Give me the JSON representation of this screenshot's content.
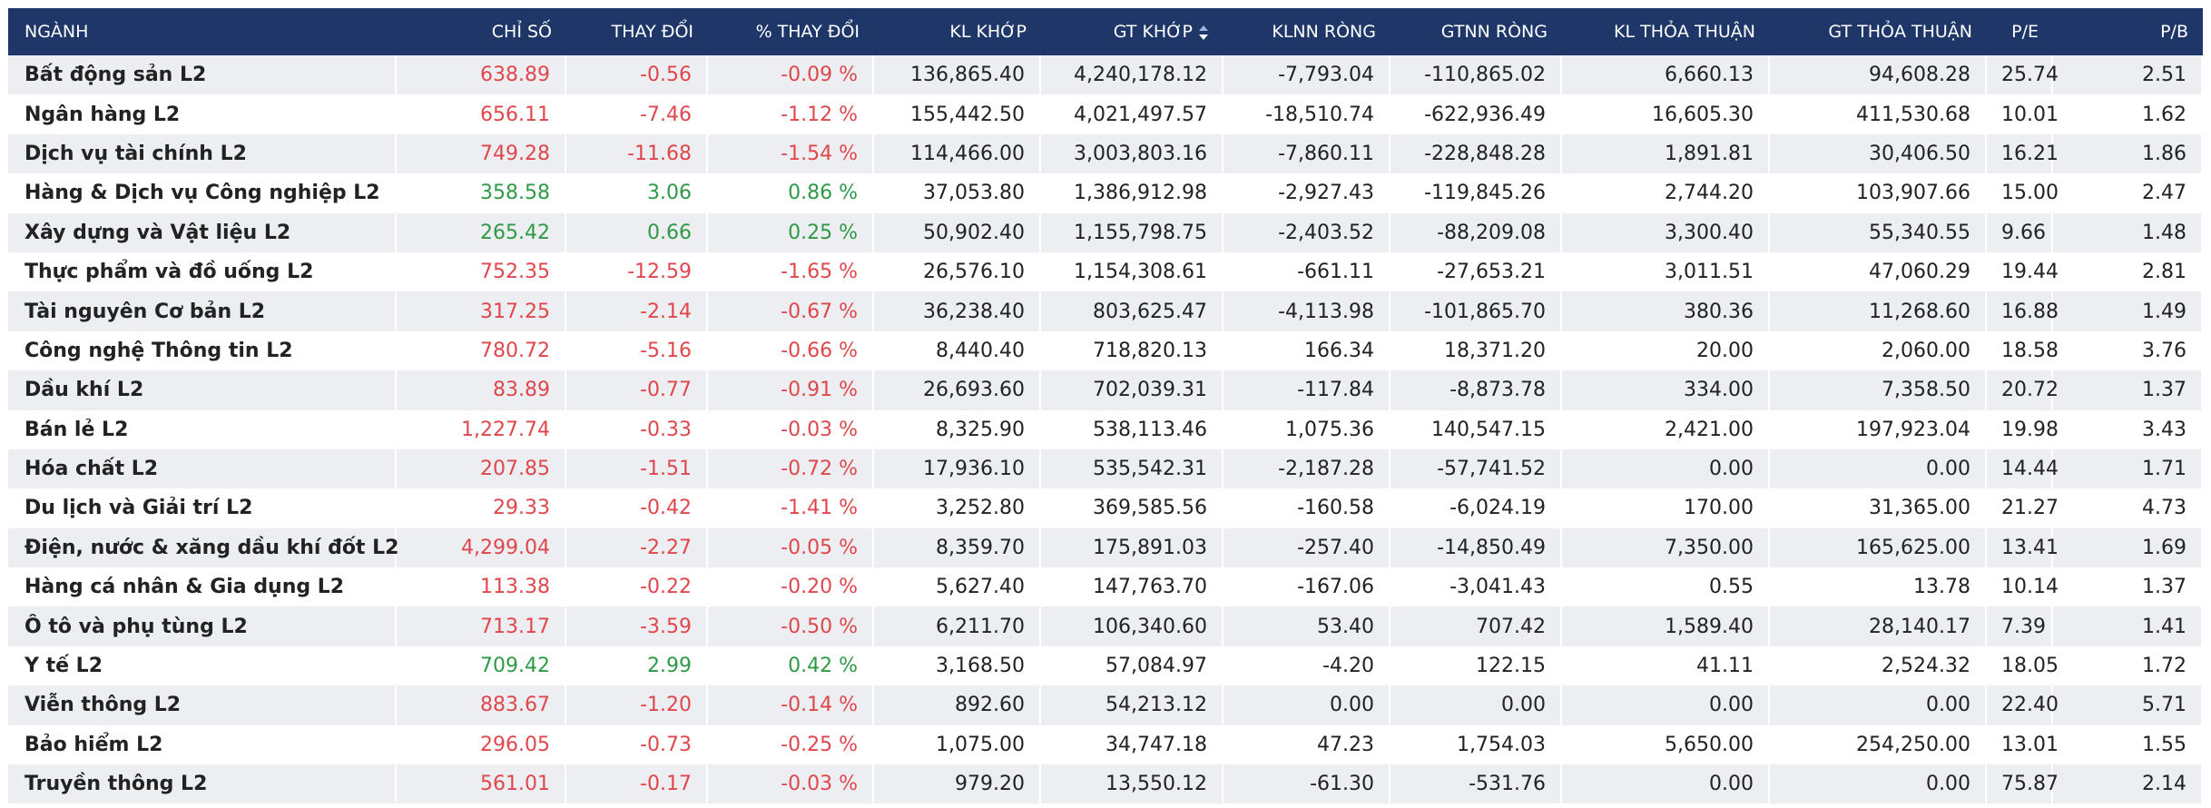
{
  "table": {
    "columns": [
      "NGÀNH",
      "CHỈ SỐ",
      "THAY ĐỔI",
      "% THAY ĐỔI",
      "KL KHỚP",
      "GT KHỚP",
      "KLNN RÒNG",
      "GTNN RÒNG",
      "KL THỎA THUẬN",
      "GT THỎA THUẬN",
      "P/E",
      "P/B"
    ],
    "rows": [
      [
        "Bất động sản L2",
        "638.89",
        "-0.56",
        "-0.09 %",
        "136,865.40",
        "4,240,178.12",
        "-7,793.04",
        "-110,865.02",
        "6,660.13",
        "94,608.28",
        "25.74",
        "2.51"
      ],
      [
        "Ngân hàng L2",
        "656.11",
        "-7.46",
        "-1.12 %",
        "155,442.50",
        "4,021,497.57",
        "-18,510.74",
        "-622,936.49",
        "16,605.30",
        "411,530.68",
        "10.01",
        "1.62"
      ],
      [
        "Dịch vụ tài chính L2",
        "749.28",
        "-11.68",
        "-1.54 %",
        "114,466.00",
        "3,003,803.16",
        "-7,860.11",
        "-228,848.28",
        "1,891.81",
        "30,406.50",
        "16.21",
        "1.86"
      ],
      [
        "Hàng & Dịch vụ Công nghiệp L2",
        "358.58",
        "3.06",
        "0.86 %",
        "37,053.80",
        "1,386,912.98",
        "-2,927.43",
        "-119,845.26",
        "2,744.20",
        "103,907.66",
        "15.00",
        "2.47"
      ],
      [
        "Xây dựng và Vật liệu L2",
        "265.42",
        "0.66",
        "0.25 %",
        "50,902.40",
        "1,155,798.75",
        "-2,403.52",
        "-88,209.08",
        "3,300.40",
        "55,340.55",
        "9.66",
        "1.48"
      ],
      [
        "Thực phẩm và đồ uống L2",
        "752.35",
        "-12.59",
        "-1.65 %",
        "26,576.10",
        "1,154,308.61",
        "-661.11",
        "-27,653.21",
        "3,011.51",
        "47,060.29",
        "19.44",
        "2.81"
      ],
      [
        "Tài nguyên Cơ bản L2",
        "317.25",
        "-2.14",
        "-0.67 %",
        "36,238.40",
        "803,625.47",
        "-4,113.98",
        "-101,865.70",
        "380.36",
        "11,268.60",
        "16.88",
        "1.49"
      ],
      [
        "Công nghệ Thông tin L2",
        "780.72",
        "-5.16",
        "-0.66 %",
        "8,440.40",
        "718,820.13",
        "166.34",
        "18,371.20",
        "20.00",
        "2,060.00",
        "18.58",
        "3.76"
      ],
      [
        "Dầu khí L2",
        "83.89",
        "-0.77",
        "-0.91 %",
        "26,693.60",
        "702,039.31",
        "-117.84",
        "-8,873.78",
        "334.00",
        "7,358.50",
        "20.72",
        "1.37"
      ],
      [
        "Bán lẻ L2",
        "1,227.74",
        "-0.33",
        "-0.03 %",
        "8,325.90",
        "538,113.46",
        "1,075.36",
        "140,547.15",
        "2,421.00",
        "197,923.04",
        "19.98",
        "3.43"
      ],
      [
        "Hóa chất L2",
        "207.85",
        "-1.51",
        "-0.72 %",
        "17,936.10",
        "535,542.31",
        "-2,187.28",
        "-57,741.52",
        "0.00",
        "0.00",
        "14.44",
        "1.71"
      ],
      [
        "Du lịch và Giải trí L2",
        "29.33",
        "-0.42",
        "-1.41 %",
        "3,252.80",
        "369,585.56",
        "-160.58",
        "-6,024.19",
        "170.00",
        "31,365.00",
        "21.27",
        "4.73"
      ],
      [
        "Điện, nước & xăng dầu khí đốt L2",
        "4,299.04",
        "-2.27",
        "-0.05 %",
        "8,359.70",
        "175,891.03",
        "-257.40",
        "-14,850.49",
        "7,350.00",
        "165,625.00",
        "13.41",
        "1.69"
      ],
      [
        "Hàng cá nhân & Gia dụng L2",
        "113.38",
        "-0.22",
        "-0.20 %",
        "5,627.40",
        "147,763.70",
        "-167.06",
        "-3,041.43",
        "0.55",
        "13.78",
        "10.14",
        "1.37"
      ],
      [
        "Ô tô và phụ tùng L2",
        "713.17",
        "-3.59",
        "-0.50 %",
        "6,211.70",
        "106,340.60",
        "53.40",
        "707.42",
        "1,589.40",
        "28,140.17",
        "7.39",
        "1.41"
      ],
      [
        "Y tế L2",
        "709.42",
        "2.99",
        "0.42 %",
        "3,168.50",
        "57,084.97",
        "-4.20",
        "122.15",
        "41.11",
        "2,524.32",
        "18.05",
        "1.72"
      ],
      [
        "Viễn thông L2",
        "883.67",
        "-1.20",
        "-0.14 %",
        "892.60",
        "54,213.12",
        "0.00",
        "0.00",
        "0.00",
        "0.00",
        "22.40",
        "5.71"
      ],
      [
        "Bảo hiểm L2",
        "296.05",
        "-0.73",
        "-0.25 %",
        "1,075.00",
        "34,747.18",
        "47.23",
        "1,754.03",
        "5,650.00",
        "254,250.00",
        "13.01",
        "1.55"
      ],
      [
        "Truyền thông L2",
        "561.01",
        "-0.17",
        "-0.03 %",
        "979.20",
        "13,550.12",
        "-61.30",
        "-531.76",
        "0.00",
        "0.00",
        "75.87",
        "2.14"
      ]
    ]
  }
}
